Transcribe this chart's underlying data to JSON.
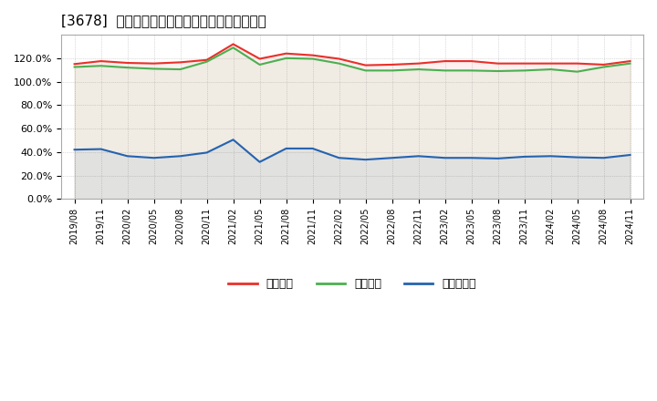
{
  "title": "[3678]  流動比率、当座比率、現預金比率の推移",
  "x_labels": [
    "2019/08",
    "2019/11",
    "2020/02",
    "2020/05",
    "2020/08",
    "2020/11",
    "2021/02",
    "2021/05",
    "2021/08",
    "2021/11",
    "2022/02",
    "2022/05",
    "2022/08",
    "2022/11",
    "2023/02",
    "2023/05",
    "2023/08",
    "2023/11",
    "2024/02",
    "2024/05",
    "2024/08",
    "2024/11"
  ],
  "ryudo": [
    115.0,
    117.5,
    116.0,
    115.5,
    116.5,
    118.5,
    132.0,
    119.5,
    124.0,
    122.5,
    119.5,
    114.0,
    114.5,
    115.5,
    117.5,
    117.5,
    115.5,
    115.5,
    115.5,
    115.5,
    114.5,
    117.5
  ],
  "toza": [
    112.5,
    113.5,
    112.0,
    111.0,
    110.5,
    117.0,
    129.0,
    114.5,
    120.0,
    119.5,
    115.5,
    109.5,
    109.5,
    110.5,
    109.5,
    109.5,
    109.0,
    109.5,
    110.5,
    108.5,
    112.5,
    115.5
  ],
  "genyo": [
    42.0,
    42.5,
    36.5,
    35.0,
    36.5,
    39.5,
    50.5,
    31.5,
    43.0,
    43.0,
    35.0,
    33.5,
    35.0,
    36.5,
    35.0,
    35.0,
    34.5,
    36.0,
    36.5,
    35.5,
    35.0,
    37.5
  ],
  "ryudo_color": "#e8312a",
  "toza_color": "#4caf50",
  "genyo_color": "#2563b0",
  "legend_ryudo": "流動比率",
  "legend_toza": "当座比率",
  "legend_genyo": "現預金比率",
  "ylim": [
    0,
    140
  ],
  "yticks": [
    0,
    20,
    40,
    60,
    80,
    100,
    120
  ],
  "background_color": "#ffffff",
  "plot_bg_color": "#ffffff",
  "grid_color": "#bbbbbb",
  "title_fontsize": 11
}
